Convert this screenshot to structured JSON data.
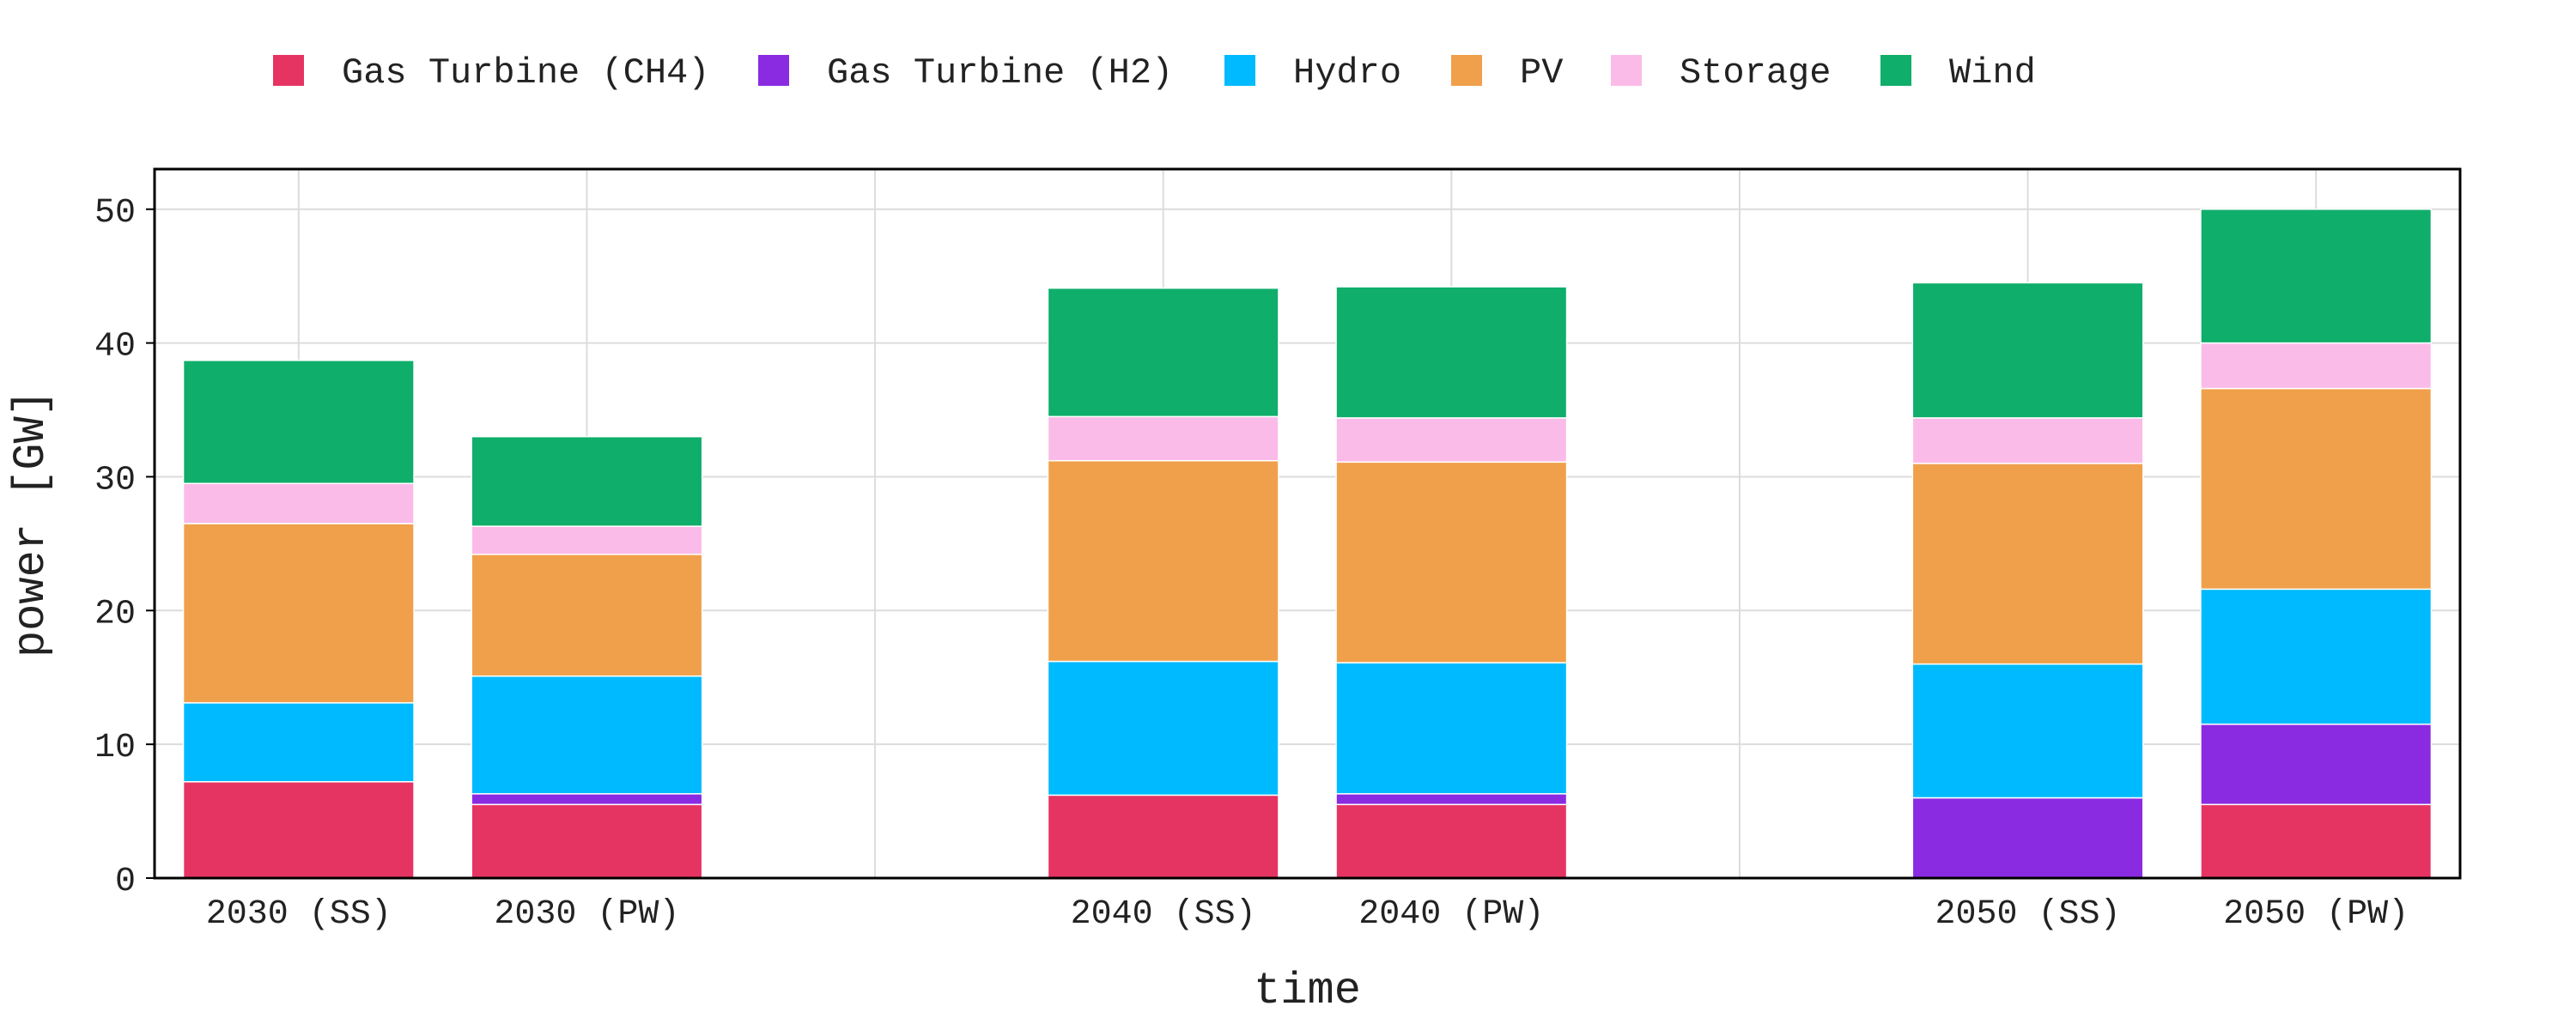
{
  "chart_data": {
    "type": "bar",
    "stacked": true,
    "xlabel": "time",
    "ylabel": "power [GW]",
    "ylim": [
      0,
      53
    ],
    "yticks": [
      0,
      10,
      20,
      30,
      40,
      50
    ],
    "grid": true,
    "legend_position": "top",
    "groups": [
      {
        "categories": [
          "2030 (SS)",
          "2030 (PW)"
        ]
      },
      {
        "categories": [
          "2040 (SS)",
          "2040 (PW)"
        ]
      },
      {
        "categories": [
          "2050 (SS)",
          "2050 (PW)"
        ]
      }
    ],
    "categories": [
      "2030 (SS)",
      "2030 (PW)",
      "2040 (SS)",
      "2040 (PW)",
      "2050 (SS)",
      "2050 (PW)"
    ],
    "series": [
      {
        "name": "Gas Turbine (CH4)",
        "color": "#e63462",
        "values": [
          7.2,
          5.5,
          6.2,
          5.5,
          0,
          5.5
        ]
      },
      {
        "name": "Gas Turbine (H2)",
        "color": "#8a2be2",
        "values": [
          0,
          0.8,
          0,
          0.8,
          6.0,
          6.0
        ]
      },
      {
        "name": "Hydro",
        "color": "#00baff",
        "values": [
          5.9,
          8.8,
          10.0,
          9.8,
          10.0,
          10.1
        ]
      },
      {
        "name": "PV",
        "color": "#f0a04b",
        "values": [
          13.4,
          9.1,
          15.0,
          15.0,
          15.0,
          15.0
        ]
      },
      {
        "name": "Storage",
        "color": "#fbbbe8",
        "values": [
          3.0,
          2.1,
          3.3,
          3.3,
          3.4,
          3.4
        ]
      },
      {
        "name": "Wind",
        "color": "#0fae6a",
        "values": [
          9.2,
          6.7,
          9.6,
          9.8,
          10.1,
          10.0
        ]
      }
    ]
  }
}
